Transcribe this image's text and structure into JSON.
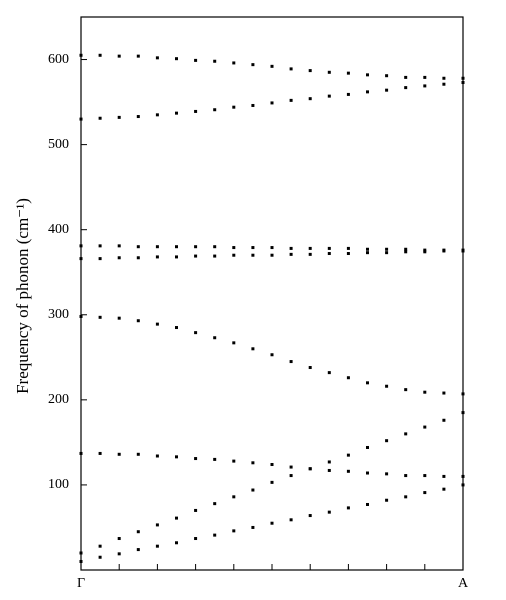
{
  "chart_data": {
    "type": "dotted-line",
    "y_label": "Frequency of phonon (cm⁻¹)",
    "x": [
      0,
      0.05,
      0.1,
      0.15,
      0.2,
      0.25,
      0.3,
      0.35,
      0.4,
      0.45,
      0.5,
      0.55,
      0.6,
      0.65,
      0.7,
      0.75,
      0.8,
      0.85,
      0.9,
      0.95,
      1
    ],
    "xlim": [
      0,
      1
    ],
    "xticks": [
      {
        "value": 0,
        "label": "Γ"
      },
      {
        "value": 1,
        "label": "A"
      }
    ],
    "ylim": [
      0,
      650
    ],
    "yticks": [
      100,
      200,
      300,
      400,
      500,
      600
    ],
    "series": [
      {
        "color": "#000000",
        "values": [
          605,
          605,
          604,
          604,
          602,
          601,
          599,
          598,
          596,
          594,
          592,
          589,
          587,
          585,
          584,
          582,
          581,
          579,
          579,
          578,
          578
        ]
      },
      {
        "color": "#000000",
        "values": [
          530,
          531,
          532,
          533,
          535,
          537,
          539,
          541,
          544,
          546,
          549,
          552,
          554,
          557,
          559,
          562,
          564,
          567,
          569,
          571,
          573
        ]
      },
      {
        "color": "#000000",
        "values": [
          381,
          381,
          381,
          380,
          380,
          380,
          380,
          380,
          379,
          379,
          379,
          378,
          378,
          378,
          378,
          377,
          377,
          377,
          376,
          376,
          376
        ]
      },
      {
        "color": "#000000",
        "values": [
          366,
          366,
          367,
          367,
          368,
          368,
          369,
          369,
          370,
          370,
          370,
          371,
          371,
          372,
          372,
          373,
          373,
          374,
          374,
          375,
          375
        ]
      },
      {
        "color": "#000000",
        "values": [
          298,
          297,
          296,
          293,
          289,
          285,
          279,
          273,
          267,
          260,
          253,
          245,
          238,
          232,
          226,
          220,
          216,
          212,
          209,
          208,
          207
        ]
      },
      {
        "color": "#000000",
        "values": [
          137,
          137,
          136,
          136,
          134,
          133,
          131,
          130,
          128,
          126,
          124,
          121,
          119,
          117,
          116,
          114,
          113,
          111,
          111,
          110,
          110
        ]
      },
      {
        "color": "#000000",
        "values": [
          20,
          28,
          37,
          45,
          53,
          61,
          70,
          78,
          86,
          94,
          103,
          111,
          119,
          127,
          135,
          144,
          152,
          160,
          168,
          176,
          185
        ]
      },
      {
        "color": "#000000",
        "values": [
          10,
          15,
          19,
          24,
          28,
          32,
          37,
          41,
          46,
          50,
          55,
          59,
          64,
          68,
          73,
          77,
          82,
          86,
          91,
          95,
          100
        ]
      }
    ]
  }
}
